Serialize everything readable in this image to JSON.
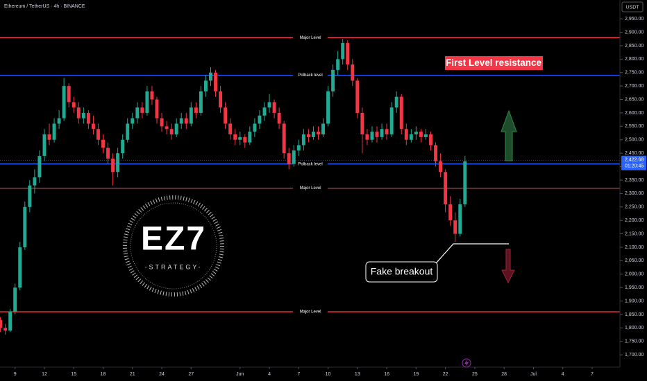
{
  "chart_data": {
    "type": "candlestick",
    "title": "Ethereum / TetherUS · 4h · BINANCE",
    "currency": "USDT",
    "up_color": "#22ab94",
    "down_color": "#f23645",
    "xlim": [
      -4.54,
      58.84
    ],
    "ylim": [
      1654,
      3020
    ],
    "x": [
      -4.5,
      -4,
      -3.5,
      -3,
      -2.5,
      -2,
      -1.5,
      -1,
      -0.5,
      0,
      0.5,
      1,
      1.5,
      2,
      2.5,
      3,
      3.5,
      4,
      4.5,
      5,
      5.5,
      6,
      6.5,
      7,
      7.5,
      8,
      8.5,
      9,
      9.5,
      10,
      10.5,
      11,
      11.5,
      12,
      12.5,
      13,
      13.5,
      14,
      14.5,
      15,
      15.5,
      16,
      16.5,
      17,
      17.5,
      18,
      18.5,
      19,
      19.5,
      20,
      20.5,
      21,
      21.5,
      22,
      22.5,
      23,
      23.5,
      24,
      24.5,
      25,
      25.5,
      26,
      26.5,
      27,
      27.5,
      28,
      28.5,
      29,
      29.5,
      30,
      30.5,
      31,
      31.5,
      32,
      32.5,
      33,
      33.5,
      34,
      34.5,
      35,
      35.5,
      36,
      36.5,
      37,
      37.5,
      38,
      38.5,
      39,
      39.5,
      40,
      40.5,
      41,
      41.5,
      42,
      42.5,
      43
    ],
    "ohlc": [
      [
        1830,
        1840,
        1785,
        1800
      ],
      [
        1800,
        1815,
        1775,
        1790
      ],
      [
        1790,
        1870,
        1785,
        1860
      ],
      [
        1860,
        1965,
        1850,
        1950
      ],
      [
        1950,
        2120,
        1940,
        2100
      ],
      [
        2100,
        2270,
        2090,
        2250
      ],
      [
        2250,
        2350,
        2230,
        2330
      ],
      [
        2330,
        2390,
        2300,
        2360
      ],
      [
        2360,
        2460,
        2340,
        2440
      ],
      [
        2440,
        2540,
        2420,
        2520
      ],
      [
        2520,
        2560,
        2480,
        2500
      ],
      [
        2500,
        2580,
        2490,
        2560
      ],
      [
        2560,
        2610,
        2540,
        2580
      ],
      [
        2580,
        2730,
        2570,
        2700
      ],
      [
        2700,
        2710,
        2620,
        2640
      ],
      [
        2640,
        2660,
        2600,
        2620
      ],
      [
        2620,
        2640,
        2560,
        2580
      ],
      [
        2580,
        2620,
        2560,
        2600
      ],
      [
        2600,
        2610,
        2540,
        2560
      ],
      [
        2560,
        2590,
        2520,
        2540
      ],
      [
        2540,
        2560,
        2480,
        2500
      ],
      [
        2500,
        2520,
        2450,
        2470
      ],
      [
        2470,
        2490,
        2410,
        2430
      ],
      [
        2430,
        2450,
        2330,
        2380
      ],
      [
        2380,
        2470,
        2360,
        2450
      ],
      [
        2450,
        2520,
        2430,
        2500
      ],
      [
        2500,
        2580,
        2490,
        2560
      ],
      [
        2560,
        2600,
        2540,
        2580
      ],
      [
        2580,
        2640,
        2560,
        2620
      ],
      [
        2620,
        2640,
        2580,
        2600
      ],
      [
        2600,
        2700,
        2590,
        2680
      ],
      [
        2680,
        2700,
        2630,
        2650
      ],
      [
        2650,
        2660,
        2560,
        2580
      ],
      [
        2580,
        2600,
        2530,
        2550
      ],
      [
        2550,
        2570,
        2520,
        2540
      ],
      [
        2540,
        2560,
        2500,
        2520
      ],
      [
        2520,
        2580,
        2510,
        2560
      ],
      [
        2560,
        2600,
        2540,
        2580
      ],
      [
        2580,
        2600,
        2540,
        2560
      ],
      [
        2560,
        2640,
        2550,
        2620
      ],
      [
        2620,
        2640,
        2580,
        2600
      ],
      [
        2600,
        2700,
        2590,
        2680
      ],
      [
        2680,
        2740,
        2660,
        2720
      ],
      [
        2720,
        2770,
        2700,
        2750
      ],
      [
        2750,
        2760,
        2660,
        2680
      ],
      [
        2680,
        2700,
        2600,
        2620
      ],
      [
        2620,
        2640,
        2540,
        2560
      ],
      [
        2560,
        2580,
        2500,
        2520
      ],
      [
        2520,
        2540,
        2480,
        2500
      ],
      [
        2500,
        2530,
        2480,
        2510
      ],
      [
        2510,
        2520,
        2470,
        2490
      ],
      [
        2490,
        2550,
        2480,
        2530
      ],
      [
        2530,
        2580,
        2510,
        2560
      ],
      [
        2560,
        2610,
        2540,
        2590
      ],
      [
        2590,
        2640,
        2570,
        2620
      ],
      [
        2620,
        2670,
        2600,
        2640
      ],
      [
        2640,
        2650,
        2580,
        2600
      ],
      [
        2600,
        2620,
        2540,
        2560
      ],
      [
        2560,
        2570,
        2430,
        2450
      ],
      [
        2450,
        2470,
        2390,
        2410
      ],
      [
        2410,
        2480,
        2400,
        2460
      ],
      [
        2460,
        2500,
        2440,
        2480
      ],
      [
        2480,
        2540,
        2460,
        2520
      ],
      [
        2520,
        2540,
        2490,
        2510
      ],
      [
        2510,
        2550,
        2500,
        2530
      ],
      [
        2530,
        2550,
        2500,
        2520
      ],
      [
        2520,
        2580,
        2510,
        2560
      ],
      [
        2560,
        2700,
        2550,
        2680
      ],
      [
        2680,
        2780,
        2660,
        2760
      ],
      [
        2760,
        2830,
        2740,
        2800
      ],
      [
        2800,
        2875,
        2780,
        2860
      ],
      [
        2860,
        2870,
        2760,
        2780
      ],
      [
        2780,
        2800,
        2700,
        2720
      ],
      [
        2720,
        2730,
        2580,
        2600
      ],
      [
        2600,
        2620,
        2450,
        2520
      ],
      [
        2520,
        2540,
        2480,
        2500
      ],
      [
        2500,
        2550,
        2490,
        2530
      ],
      [
        2530,
        2550,
        2490,
        2510
      ],
      [
        2510,
        2560,
        2500,
        2540
      ],
      [
        2540,
        2560,
        2500,
        2520
      ],
      [
        2520,
        2640,
        2510,
        2620
      ],
      [
        2620,
        2680,
        2600,
        2660
      ],
      [
        2660,
        2670,
        2520,
        2540
      ],
      [
        2540,
        2560,
        2480,
        2500
      ],
      [
        2500,
        2540,
        2490,
        2520
      ],
      [
        2520,
        2550,
        2500,
        2530
      ],
      [
        2530,
        2540,
        2490,
        2510
      ],
      [
        2510,
        2540,
        2500,
        2520
      ],
      [
        2520,
        2530,
        2460,
        2480
      ],
      [
        2480,
        2490,
        2400,
        2420
      ],
      [
        2420,
        2450,
        2360,
        2380
      ],
      [
        2380,
        2390,
        2230,
        2260
      ],
      [
        2260,
        2290,
        2180,
        2200
      ],
      [
        2200,
        2230,
        2120,
        2150
      ],
      [
        2150,
        2280,
        2140,
        2260
      ],
      [
        2260,
        2440,
        2250,
        2420
      ]
    ],
    "yticks": [
      {
        "value": 1700,
        "label": "1,700.00"
      },
      {
        "value": 1750,
        "label": "1,750.00"
      },
      {
        "value": 1800,
        "label": "1,800.00"
      },
      {
        "value": 1850,
        "label": "1,850.00"
      },
      {
        "value": 1900,
        "label": "1,900.00"
      },
      {
        "value": 1950,
        "label": "1,950.00"
      },
      {
        "value": 2000,
        "label": "2,000.00"
      },
      {
        "value": 2050,
        "label": "2,050.00"
      },
      {
        "value": 2100,
        "label": "2,100.00"
      },
      {
        "value": 2150,
        "label": "2,150.00"
      },
      {
        "value": 2200,
        "label": "2,200.00"
      },
      {
        "value": 2250,
        "label": "2,250.00"
      },
      {
        "value": 2300,
        "label": "2,300.00"
      },
      {
        "value": 2350,
        "label": "2,350.00"
      },
      {
        "value": 2400,
        "label": "2,400.00"
      },
      {
        "value": 2450,
        "label": "2,450.00"
      },
      {
        "value": 2500,
        "label": "2,500.00"
      },
      {
        "value": 2550,
        "label": "2,550.00"
      },
      {
        "value": 2600,
        "label": "2,600.00"
      },
      {
        "value": 2650,
        "label": "2,650.00"
      },
      {
        "value": 2700,
        "label": "2,700.00"
      },
      {
        "value": 2750,
        "label": "2,750.00"
      },
      {
        "value": 2800,
        "label": "2,800.00"
      },
      {
        "value": 2850,
        "label": "2,850.00"
      },
      {
        "value": 2900,
        "label": "2,900.00"
      },
      {
        "value": 2950,
        "label": "2,950.00"
      }
    ],
    "xticks": [
      {
        "value": -3,
        "label": "9"
      },
      {
        "value": 0,
        "label": "12"
      },
      {
        "value": 3,
        "label": "15"
      },
      {
        "value": 6,
        "label": "18"
      },
      {
        "value": 9,
        "label": "21"
      },
      {
        "value": 12,
        "label": "24"
      },
      {
        "value": 15,
        "label": "27"
      },
      {
        "value": 20,
        "label": "Jun"
      },
      {
        "value": 23,
        "label": "4"
      },
      {
        "value": 26,
        "label": "7"
      },
      {
        "value": 29,
        "label": "10"
      },
      {
        "value": 32,
        "label": "13"
      },
      {
        "value": 35,
        "label": "16"
      },
      {
        "value": 38,
        "label": "19"
      },
      {
        "value": 41,
        "label": "22"
      },
      {
        "value": 44,
        "label": "25"
      },
      {
        "value": 47,
        "label": "28"
      },
      {
        "value": 50,
        "label": "Jul"
      },
      {
        "value": 53,
        "label": "4"
      },
      {
        "value": 56,
        "label": "7"
      }
    ],
    "levels": [
      {
        "value": 2880,
        "label": "Major Level",
        "color": "#f23645"
      },
      {
        "value": 2740,
        "label": "Polback level",
        "color": "#2962ff"
      },
      {
        "value": 2410,
        "label": "Polback level",
        "color": "#2962ff"
      },
      {
        "value": 2320,
        "label": "Major Level",
        "color": "#f23645"
      },
      {
        "value": 1860,
        "label": "Major Level",
        "color": "#f23645"
      }
    ],
    "last_price": {
      "value": 2422.68,
      "label": "2,422.68"
    },
    "countdown": "01:20:45",
    "annotations": [
      "First Level resistance",
      "Fake breakout"
    ],
    "logo": {
      "mark": "EZ7",
      "subtitle": "-STRATEGY-"
    }
  }
}
